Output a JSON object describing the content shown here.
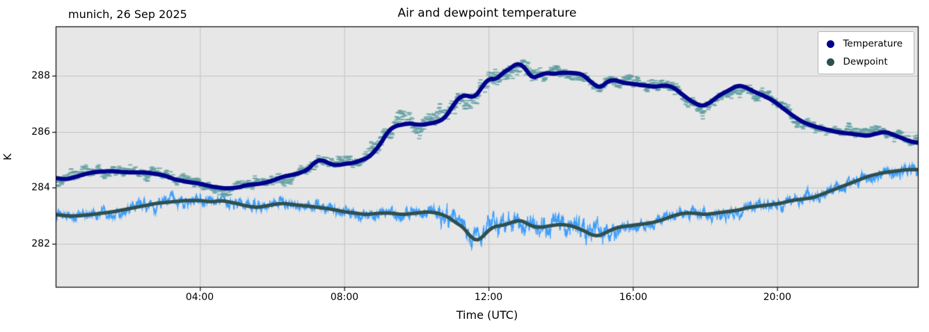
{
  "header": {
    "left_title": "munich, 26 Sep 2025",
    "title": "Air and dewpoint temperature"
  },
  "axes": {
    "xlabel": "Time (UTC)",
    "ylabel": "K"
  },
  "chart_data": {
    "type": "line",
    "title": "Air and dewpoint temperature",
    "subtitle_left": "munich, 26 Sep 2025",
    "xlabel": "Time (UTC)",
    "ylabel": "K",
    "xlim": [
      0,
      23.92
    ],
    "ylim": [
      280.45,
      289.75
    ],
    "x_ticks": [
      4,
      8,
      12,
      16,
      20
    ],
    "x_tick_labels": [
      "04:00",
      "08:00",
      "12:00",
      "16:00",
      "20:00"
    ],
    "y_ticks": [
      282,
      284,
      286,
      288
    ],
    "grid": true,
    "legend_position": "upper right",
    "plot_bg": "#e7e7e7",
    "grid_color": "#c3c3c3",
    "series": [
      {
        "name": "Temperature",
        "color": "#00008b",
        "raw_color": "#5f9ea0",
        "points": [
          [
            0.0,
            284.35
          ],
          [
            0.3,
            284.3
          ],
          [
            0.7,
            284.45
          ],
          [
            1.0,
            284.55
          ],
          [
            1.5,
            284.6
          ],
          [
            2.0,
            284.55
          ],
          [
            2.5,
            284.55
          ],
          [
            3.0,
            284.45
          ],
          [
            3.3,
            284.3
          ],
          [
            3.7,
            284.2
          ],
          [
            4.0,
            284.15
          ],
          [
            4.3,
            284.05
          ],
          [
            4.7,
            283.98
          ],
          [
            5.0,
            284.0
          ],
          [
            5.3,
            284.1
          ],
          [
            5.7,
            284.15
          ],
          [
            6.0,
            284.25
          ],
          [
            6.3,
            284.4
          ],
          [
            6.7,
            284.5
          ],
          [
            7.0,
            284.65
          ],
          [
            7.2,
            284.95
          ],
          [
            7.4,
            285.0
          ],
          [
            7.6,
            284.85
          ],
          [
            7.8,
            284.8
          ],
          [
            8.0,
            284.85
          ],
          [
            8.3,
            284.9
          ],
          [
            8.5,
            285.0
          ],
          [
            8.7,
            285.1
          ],
          [
            9.0,
            285.55
          ],
          [
            9.2,
            286.0
          ],
          [
            9.4,
            286.2
          ],
          [
            9.6,
            286.25
          ],
          [
            9.8,
            286.3
          ],
          [
            10.0,
            286.25
          ],
          [
            10.2,
            286.25
          ],
          [
            10.4,
            286.3
          ],
          [
            10.6,
            286.35
          ],
          [
            10.8,
            286.5
          ],
          [
            11.0,
            286.9
          ],
          [
            11.2,
            287.25
          ],
          [
            11.4,
            287.3
          ],
          [
            11.6,
            287.2
          ],
          [
            11.8,
            287.55
          ],
          [
            12.0,
            287.9
          ],
          [
            12.2,
            287.85
          ],
          [
            12.4,
            288.1
          ],
          [
            12.6,
            288.25
          ],
          [
            12.8,
            288.45
          ],
          [
            13.0,
            288.3
          ],
          [
            13.2,
            287.9
          ],
          [
            13.4,
            288.0
          ],
          [
            13.6,
            288.1
          ],
          [
            13.8,
            288.05
          ],
          [
            14.0,
            288.1
          ],
          [
            14.3,
            288.1
          ],
          [
            14.6,
            288.05
          ],
          [
            14.9,
            287.7
          ],
          [
            15.1,
            287.55
          ],
          [
            15.3,
            287.8
          ],
          [
            15.5,
            287.85
          ],
          [
            15.7,
            287.75
          ],
          [
            16.0,
            287.7
          ],
          [
            16.3,
            287.65
          ],
          [
            16.6,
            287.6
          ],
          [
            16.9,
            287.65
          ],
          [
            17.1,
            287.6
          ],
          [
            17.4,
            287.3
          ],
          [
            17.6,
            287.1
          ],
          [
            17.9,
            286.9
          ],
          [
            18.1,
            287.0
          ],
          [
            18.4,
            287.3
          ],
          [
            18.7,
            287.5
          ],
          [
            18.9,
            287.65
          ],
          [
            19.1,
            287.6
          ],
          [
            19.4,
            287.4
          ],
          [
            19.6,
            287.3
          ],
          [
            19.9,
            287.1
          ],
          [
            20.1,
            286.9
          ],
          [
            20.4,
            286.6
          ],
          [
            20.7,
            286.35
          ],
          [
            21.0,
            286.2
          ],
          [
            21.3,
            286.1
          ],
          [
            21.6,
            286.0
          ],
          [
            21.9,
            285.95
          ],
          [
            22.2,
            285.9
          ],
          [
            22.5,
            285.85
          ],
          [
            22.8,
            285.95
          ],
          [
            23.0,
            286.0
          ],
          [
            23.2,
            285.9
          ],
          [
            23.5,
            285.75
          ],
          [
            23.7,
            285.65
          ],
          [
            23.92,
            285.6
          ]
        ]
      },
      {
        "name": "Dewpoint",
        "color": "#2f4f4f",
        "raw_color": "#1e90ff",
        "points": [
          [
            0.0,
            283.05
          ],
          [
            0.3,
            283.0
          ],
          [
            0.6,
            283.0
          ],
          [
            1.0,
            283.05
          ],
          [
            1.3,
            283.1
          ],
          [
            1.6,
            283.15
          ],
          [
            2.0,
            283.25
          ],
          [
            2.4,
            283.35
          ],
          [
            2.8,
            283.45
          ],
          [
            3.2,
            283.5
          ],
          [
            3.6,
            283.55
          ],
          [
            4.0,
            283.55
          ],
          [
            4.3,
            283.5
          ],
          [
            4.6,
            283.55
          ],
          [
            5.0,
            283.45
          ],
          [
            5.3,
            283.35
          ],
          [
            5.6,
            283.3
          ],
          [
            6.0,
            283.4
          ],
          [
            6.3,
            283.45
          ],
          [
            6.6,
            283.4
          ],
          [
            7.0,
            283.35
          ],
          [
            7.3,
            283.3
          ],
          [
            7.6,
            283.25
          ],
          [
            8.0,
            283.15
          ],
          [
            8.3,
            283.1
          ],
          [
            8.6,
            283.05
          ],
          [
            9.0,
            283.1
          ],
          [
            9.3,
            283.1
          ],
          [
            9.6,
            283.05
          ],
          [
            10.0,
            283.1
          ],
          [
            10.3,
            283.15
          ],
          [
            10.6,
            283.1
          ],
          [
            10.9,
            282.95
          ],
          [
            11.1,
            282.75
          ],
          [
            11.3,
            282.6
          ],
          [
            11.5,
            282.25
          ],
          [
            11.7,
            282.1
          ],
          [
            11.9,
            282.35
          ],
          [
            12.1,
            282.6
          ],
          [
            12.3,
            282.65
          ],
          [
            12.5,
            282.7
          ],
          [
            12.7,
            282.8
          ],
          [
            12.9,
            282.85
          ],
          [
            13.1,
            282.7
          ],
          [
            13.3,
            282.6
          ],
          [
            13.5,
            282.6
          ],
          [
            13.7,
            282.65
          ],
          [
            14.0,
            282.7
          ],
          [
            14.3,
            282.65
          ],
          [
            14.6,
            282.5
          ],
          [
            14.9,
            282.3
          ],
          [
            15.1,
            282.3
          ],
          [
            15.3,
            282.45
          ],
          [
            15.6,
            282.6
          ],
          [
            15.9,
            282.65
          ],
          [
            16.2,
            282.7
          ],
          [
            16.5,
            282.75
          ],
          [
            16.8,
            282.85
          ],
          [
            17.1,
            283.0
          ],
          [
            17.4,
            283.1
          ],
          [
            17.7,
            283.1
          ],
          [
            18.0,
            283.05
          ],
          [
            18.3,
            283.1
          ],
          [
            18.6,
            283.15
          ],
          [
            18.9,
            283.2
          ],
          [
            19.2,
            283.3
          ],
          [
            19.5,
            283.35
          ],
          [
            19.8,
            283.4
          ],
          [
            20.1,
            283.45
          ],
          [
            20.4,
            283.55
          ],
          [
            20.7,
            283.6
          ],
          [
            21.0,
            283.65
          ],
          [
            21.3,
            283.8
          ],
          [
            21.6,
            283.95
          ],
          [
            21.9,
            284.1
          ],
          [
            22.2,
            284.25
          ],
          [
            22.5,
            284.4
          ],
          [
            22.8,
            284.5
          ],
          [
            23.0,
            284.55
          ],
          [
            23.3,
            284.6
          ],
          [
            23.6,
            284.65
          ],
          [
            23.92,
            284.65
          ]
        ]
      }
    ]
  },
  "legend": {
    "items": [
      {
        "label": "Temperature"
      },
      {
        "label": "Dewpoint"
      }
    ]
  }
}
